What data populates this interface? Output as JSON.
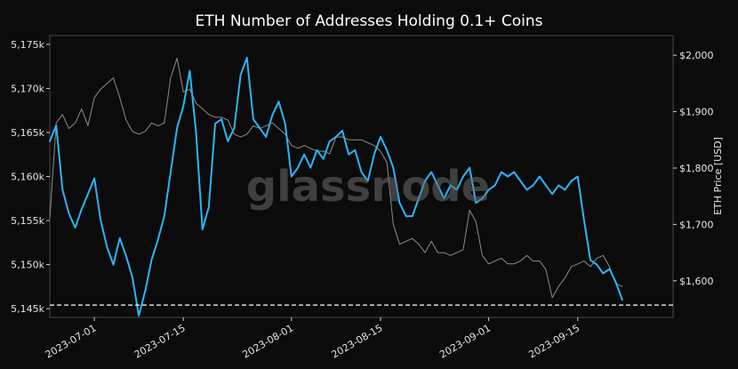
{
  "chart_data": {
    "type": "line",
    "title": "ETH Number of Addresses Holding 0.1+ Coins",
    "watermark": "glassnode",
    "y_left": {
      "ylim": [
        5144,
        5176
      ],
      "ticks": [
        5145,
        5150,
        5155,
        5160,
        5165,
        5170,
        5175
      ],
      "tick_labels": [
        "5,145k",
        "5,150k",
        "5,155k",
        "5,160k",
        "5,165k",
        "5,170k",
        "5,175k"
      ]
    },
    "y_right": {
      "label": "ETH Price [USD]",
      "ylim": [
        1535,
        2035
      ],
      "ticks": [
        1600,
        1700,
        1800,
        1900,
        2000
      ],
      "tick_labels": [
        "$1,600",
        "$1,700",
        "$1,800",
        "$1,900",
        "$2,000"
      ]
    },
    "x": {
      "xlim": [
        "2023-06-24",
        "2023-09-30"
      ],
      "ticks": [
        "2023-07-01",
        "2023-07-15",
        "2023-08-01",
        "2023-08-15",
        "2023-09-01",
        "2023-09-15"
      ],
      "tick_labels": [
        "2023-07-01",
        "2023-07-15",
        "2023-08-01",
        "2023-08-15",
        "2023-09-01",
        "2023-09-15"
      ]
    },
    "reference_line": {
      "axis": "left",
      "value": 5145.4,
      "style": "dashed",
      "color": "#ffffff"
    },
    "series": [
      {
        "axis": "left",
        "color": "#29b6f6",
        "points": [
          [
            "2023-06-24",
            5164.0
          ],
          [
            "2023-06-25",
            5165.8
          ],
          [
            "2023-06-26",
            5158.5
          ],
          [
            "2023-06-27",
            5155.8
          ],
          [
            "2023-06-28",
            5154.2
          ],
          [
            "2023-06-29",
            5156.3
          ],
          [
            "2023-06-30",
            5158.0
          ],
          [
            "2023-07-01",
            5159.8
          ],
          [
            "2023-07-02",
            5155.0
          ],
          [
            "2023-07-03",
            5152.0
          ],
          [
            "2023-07-04",
            5150.0
          ],
          [
            "2023-07-05",
            5153.0
          ],
          [
            "2023-07-06",
            5151.0
          ],
          [
            "2023-07-07",
            5148.5
          ],
          [
            "2023-07-08",
            5144.2
          ],
          [
            "2023-07-09",
            5147.0
          ],
          [
            "2023-07-10",
            5150.5
          ],
          [
            "2023-07-11",
            5152.8
          ],
          [
            "2023-07-12",
            5155.5
          ],
          [
            "2023-07-13",
            5160.5
          ],
          [
            "2023-07-14",
            5165.5
          ],
          [
            "2023-07-15",
            5168.0
          ],
          [
            "2023-07-16",
            5172.0
          ],
          [
            "2023-07-17",
            5165.0
          ],
          [
            "2023-07-18",
            5154.0
          ],
          [
            "2023-07-19",
            5156.5
          ],
          [
            "2023-07-20",
            5166.0
          ],
          [
            "2023-07-21",
            5166.5
          ],
          [
            "2023-07-22",
            5164.0
          ],
          [
            "2023-07-23",
            5165.5
          ],
          [
            "2023-07-24",
            5171.5
          ],
          [
            "2023-07-25",
            5173.5
          ],
          [
            "2023-07-26",
            5166.5
          ],
          [
            "2023-07-27",
            5165.5
          ],
          [
            "2023-07-28",
            5164.5
          ],
          [
            "2023-07-29",
            5167.0
          ],
          [
            "2023-07-30",
            5168.5
          ],
          [
            "2023-07-31",
            5166.0
          ],
          [
            "2023-08-01",
            5160.0
          ],
          [
            "2023-08-02",
            5161.0
          ],
          [
            "2023-08-03",
            5162.5
          ],
          [
            "2023-08-04",
            5161.0
          ],
          [
            "2023-08-05",
            5163.0
          ],
          [
            "2023-08-06",
            5162.0
          ],
          [
            "2023-08-07",
            5164.0
          ],
          [
            "2023-08-08",
            5164.5
          ],
          [
            "2023-08-09",
            5165.2
          ],
          [
            "2023-08-10",
            5162.5
          ],
          [
            "2023-08-11",
            5163.0
          ],
          [
            "2023-08-12",
            5160.5
          ],
          [
            "2023-08-13",
            5159.5
          ],
          [
            "2023-08-14",
            5162.5
          ],
          [
            "2023-08-15",
            5164.5
          ],
          [
            "2023-08-16",
            5163.0
          ],
          [
            "2023-08-17",
            5161.0
          ],
          [
            "2023-08-18",
            5157.0
          ],
          [
            "2023-08-19",
            5155.5
          ],
          [
            "2023-08-20",
            5155.5
          ],
          [
            "2023-08-21",
            5157.5
          ],
          [
            "2023-08-22",
            5159.5
          ],
          [
            "2023-08-23",
            5160.5
          ],
          [
            "2023-08-24",
            5159.0
          ],
          [
            "2023-08-25",
            5157.5
          ],
          [
            "2023-08-26",
            5159.0
          ],
          [
            "2023-08-27",
            5158.5
          ],
          [
            "2023-08-28",
            5160.0
          ],
          [
            "2023-08-29",
            5161.0
          ],
          [
            "2023-08-30",
            5157.0
          ],
          [
            "2023-08-31",
            5157.5
          ],
          [
            "2023-09-01",
            5158.5
          ],
          [
            "2023-09-02",
            5159.0
          ],
          [
            "2023-09-03",
            5160.5
          ],
          [
            "2023-09-04",
            5160.0
          ],
          [
            "2023-09-05",
            5160.5
          ],
          [
            "2023-09-06",
            5159.5
          ],
          [
            "2023-09-07",
            5158.5
          ],
          [
            "2023-09-08",
            5159.0
          ],
          [
            "2023-09-09",
            5160.0
          ],
          [
            "2023-09-10",
            5159.0
          ],
          [
            "2023-09-11",
            5158.0
          ],
          [
            "2023-09-12",
            5159.0
          ],
          [
            "2023-09-13",
            5158.5
          ],
          [
            "2023-09-14",
            5159.5
          ],
          [
            "2023-09-15",
            5160.0
          ],
          [
            "2023-09-16",
            5155.0
          ],
          [
            "2023-09-17",
            5150.5
          ],
          [
            "2023-09-18",
            5150.0
          ],
          [
            "2023-09-19",
            5149.0
          ],
          [
            "2023-09-20",
            5149.5
          ],
          [
            "2023-09-21",
            5148.0
          ],
          [
            "2023-09-22",
            5146.0
          ]
        ]
      },
      {
        "axis": "right",
        "color": "#8c8c8c",
        "points": [
          [
            "2023-06-24",
            1710
          ],
          [
            "2023-06-25",
            1880
          ],
          [
            "2023-06-26",
            1895
          ],
          [
            "2023-06-27",
            1870
          ],
          [
            "2023-06-28",
            1880
          ],
          [
            "2023-06-29",
            1905
          ],
          [
            "2023-06-30",
            1875
          ],
          [
            "2023-07-01",
            1925
          ],
          [
            "2023-07-02",
            1940
          ],
          [
            "2023-07-03",
            1950
          ],
          [
            "2023-07-04",
            1960
          ],
          [
            "2023-07-05",
            1925
          ],
          [
            "2023-07-06",
            1885
          ],
          [
            "2023-07-07",
            1865
          ],
          [
            "2023-07-08",
            1860
          ],
          [
            "2023-07-09",
            1865
          ],
          [
            "2023-07-10",
            1880
          ],
          [
            "2023-07-11",
            1875
          ],
          [
            "2023-07-12",
            1880
          ],
          [
            "2023-07-13",
            1960
          ],
          [
            "2023-07-14",
            1995
          ],
          [
            "2023-07-15",
            1935
          ],
          [
            "2023-07-16",
            1940
          ],
          [
            "2023-07-17",
            1915
          ],
          [
            "2023-07-18",
            1905
          ],
          [
            "2023-07-19",
            1895
          ],
          [
            "2023-07-20",
            1890
          ],
          [
            "2023-07-21",
            1890
          ],
          [
            "2023-07-22",
            1885
          ],
          [
            "2023-07-23",
            1860
          ],
          [
            "2023-07-24",
            1855
          ],
          [
            "2023-07-25",
            1860
          ],
          [
            "2023-07-26",
            1875
          ],
          [
            "2023-07-27",
            1870
          ],
          [
            "2023-07-28",
            1875
          ],
          [
            "2023-07-29",
            1880
          ],
          [
            "2023-07-30",
            1870
          ],
          [
            "2023-07-31",
            1860
          ],
          [
            "2023-08-01",
            1840
          ],
          [
            "2023-08-02",
            1835
          ],
          [
            "2023-08-03",
            1840
          ],
          [
            "2023-08-04",
            1835
          ],
          [
            "2023-08-05",
            1830
          ],
          [
            "2023-08-06",
            1830
          ],
          [
            "2023-08-07",
            1825
          ],
          [
            "2023-08-08",
            1855
          ],
          [
            "2023-08-09",
            1855
          ],
          [
            "2023-08-10",
            1850
          ],
          [
            "2023-08-11",
            1850
          ],
          [
            "2023-08-12",
            1850
          ],
          [
            "2023-08-13",
            1845
          ],
          [
            "2023-08-14",
            1840
          ],
          [
            "2023-08-15",
            1830
          ],
          [
            "2023-08-16",
            1810
          ],
          [
            "2023-08-17",
            1700
          ],
          [
            "2023-08-18",
            1665
          ],
          [
            "2023-08-19",
            1670
          ],
          [
            "2023-08-20",
            1675
          ],
          [
            "2023-08-21",
            1665
          ],
          [
            "2023-08-22",
            1650
          ],
          [
            "2023-08-23",
            1670
          ],
          [
            "2023-08-24",
            1650
          ],
          [
            "2023-08-25",
            1650
          ],
          [
            "2023-08-26",
            1645
          ],
          [
            "2023-08-27",
            1650
          ],
          [
            "2023-08-28",
            1655
          ],
          [
            "2023-08-29",
            1725
          ],
          [
            "2023-08-30",
            1705
          ],
          [
            "2023-08-31",
            1645
          ],
          [
            "2023-09-01",
            1630
          ],
          [
            "2023-09-02",
            1635
          ],
          [
            "2023-09-03",
            1640
          ],
          [
            "2023-09-04",
            1630
          ],
          [
            "2023-09-05",
            1630
          ],
          [
            "2023-09-06",
            1635
          ],
          [
            "2023-09-07",
            1645
          ],
          [
            "2023-09-08",
            1635
          ],
          [
            "2023-09-09",
            1635
          ],
          [
            "2023-09-10",
            1620
          ],
          [
            "2023-09-11",
            1570
          ],
          [
            "2023-09-12",
            1590
          ],
          [
            "2023-09-13",
            1605
          ],
          [
            "2023-09-14",
            1625
          ],
          [
            "2023-09-15",
            1630
          ],
          [
            "2023-09-16",
            1635
          ],
          [
            "2023-09-17",
            1625
          ],
          [
            "2023-09-18",
            1640
          ],
          [
            "2023-09-19",
            1645
          ],
          [
            "2023-09-20",
            1625
          ],
          [
            "2023-09-21",
            1595
          ],
          [
            "2023-09-22",
            1590
          ]
        ]
      }
    ],
    "grid": false,
    "legend": "none",
    "colors": {
      "background": "#0b0b0b",
      "frame": "#4a4a4a",
      "text": "#e6e6e6"
    }
  }
}
